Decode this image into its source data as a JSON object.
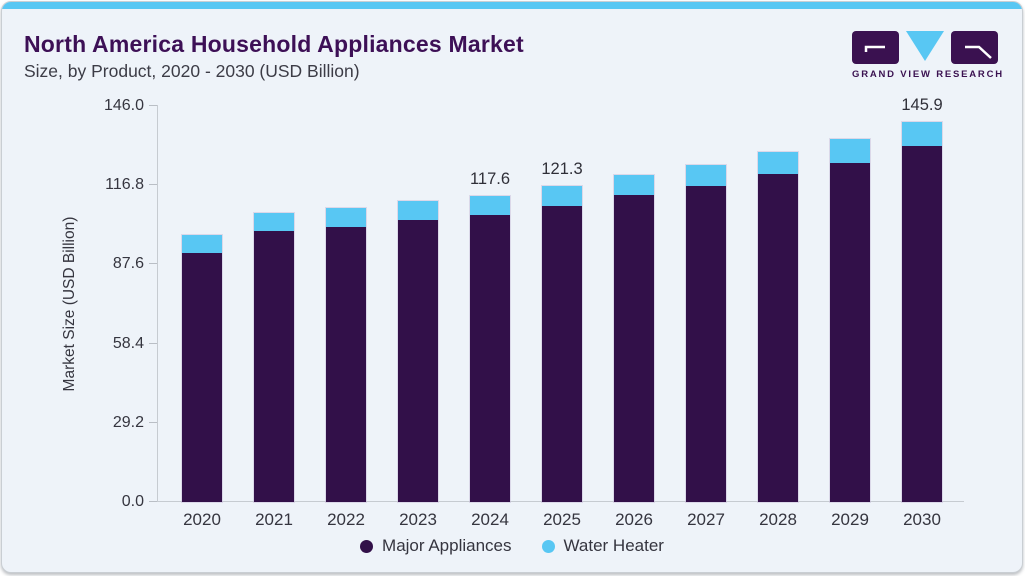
{
  "header": {
    "title": "North America Household Appliances Market",
    "subtitle": "Size, by Product, 2020 - 2030 (USD Billion)",
    "logo_text": "GRAND VIEW RESEARCH"
  },
  "colors": {
    "accent_blue": "#58c7f3",
    "bar_purple": "#321049",
    "title_purple": "#3d1056",
    "logo_purple": "#3a1150",
    "card_background": "#eef3f9",
    "axis_gray": "#c6cbd1",
    "text_dark": "#35353f"
  },
  "chart_data": {
    "type": "bar",
    "stacked": true,
    "title": "North America Household Appliances Market Size, by Product, 2020 - 2030 (USD Billion)",
    "categories": [
      "2020",
      "2021",
      "2022",
      "2023",
      "2024",
      "2025",
      "2026",
      "2027",
      "2028",
      "2029",
      "2030"
    ],
    "series": [
      {
        "name": "Major Appliances",
        "color": "#321049",
        "values": [
          95.6,
          103.9,
          105.6,
          108.2,
          110.1,
          113.7,
          117.7,
          121.4,
          125.9,
          130.3,
          136.5
        ]
      },
      {
        "name": "Water Heater",
        "color": "#58c7f3",
        "values": [
          7.0,
          7.1,
          7.2,
          7.3,
          7.5,
          7.6,
          7.8,
          8.1,
          8.5,
          8.9,
          9.4
        ]
      }
    ],
    "totals": [
      102.6,
      111.0,
      112.8,
      115.5,
      117.6,
      121.3,
      125.5,
      129.5,
      134.4,
      139.2,
      145.9
    ],
    "bar_labels": [
      "",
      "",
      "",
      "",
      "117.6",
      "121.3",
      "",
      "",
      "",
      "",
      "145.9"
    ],
    "xlabel": "",
    "ylabel": "Market Size (USD Billion)",
    "yticks": [
      "0.0",
      "29.2",
      "58.4",
      "87.6",
      "116.8",
      "146.0"
    ],
    "ylim": [
      0,
      146.0
    ],
    "grid": false,
    "legend_position": "bottom"
  }
}
